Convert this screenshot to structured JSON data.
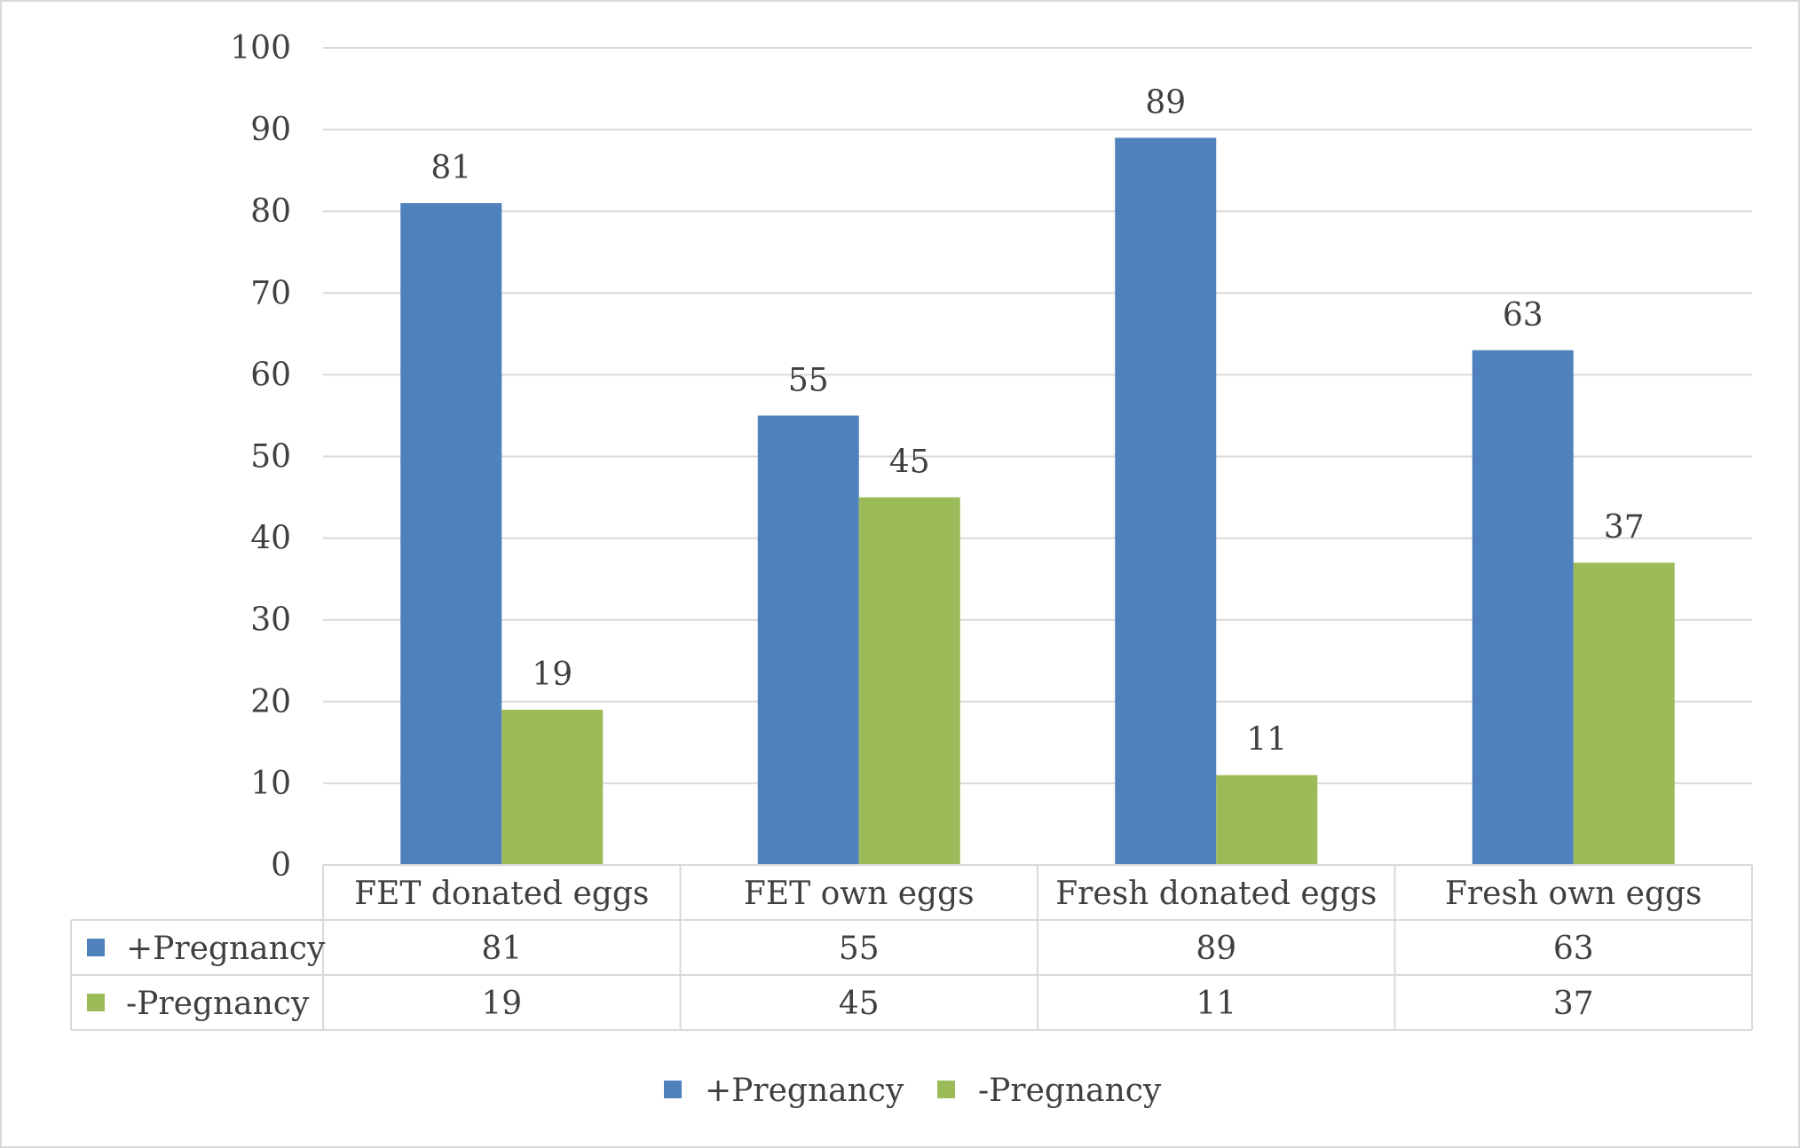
{
  "chart_data": {
    "type": "bar",
    "categories": [
      "FET donated eggs",
      "FET own eggs",
      "Fresh donated eggs",
      "Fresh own eggs"
    ],
    "series": [
      {
        "name": "+Pregnancy",
        "values": [
          81,
          55,
          89,
          63
        ],
        "color": "#4f81bd"
      },
      {
        "name": "-Pregnancy",
        "values": [
          19,
          45,
          11,
          37
        ],
        "color": "#9bbb59"
      }
    ],
    "ylim": [
      0,
      100
    ],
    "yticks": [
      0,
      10,
      20,
      30,
      40,
      50,
      60,
      70,
      80,
      90,
      100
    ],
    "title": "",
    "xlabel": "",
    "ylabel": "",
    "grid": true,
    "data_table": true,
    "legend": "bottom-center",
    "colors": {
      "grid": "#d9d9d9",
      "text": "#404040",
      "border": "#d9d9d9"
    }
  }
}
